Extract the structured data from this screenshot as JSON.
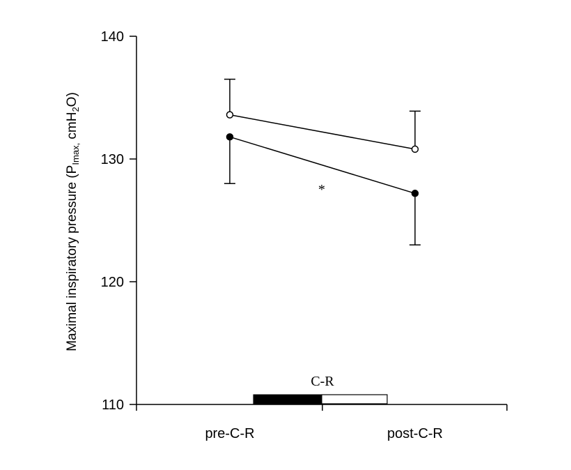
{
  "chart_data": {
    "type": "line",
    "ylabel_main": "Maximal inspiratory pressure (P",
    "ylabel_sub": "Imax,",
    "ylabel_unit_a": " cmH",
    "ylabel_unit_sub": "2",
    "ylabel_unit_b": "O)",
    "categories": [
      "pre-C-R",
      "post-C-R"
    ],
    "ylim": [
      110,
      140
    ],
    "yticks": [
      110,
      120,
      130,
      140
    ],
    "series": [
      {
        "marker": "open-circle",
        "values": [
          133.6,
          130.8
        ],
        "error_up": [
          2.9,
          3.1
        ],
        "error_down": [
          0,
          0
        ]
      },
      {
        "marker": "filled-circle",
        "values": [
          131.8,
          127.2
        ],
        "error_up": [
          0,
          0
        ],
        "error_down": [
          3.8,
          4.2
        ]
      }
    ],
    "annotations": {
      "significance": "*",
      "bar_label": "C-R"
    },
    "intervention_bar": {
      "segments": [
        "black",
        "white"
      ]
    }
  }
}
